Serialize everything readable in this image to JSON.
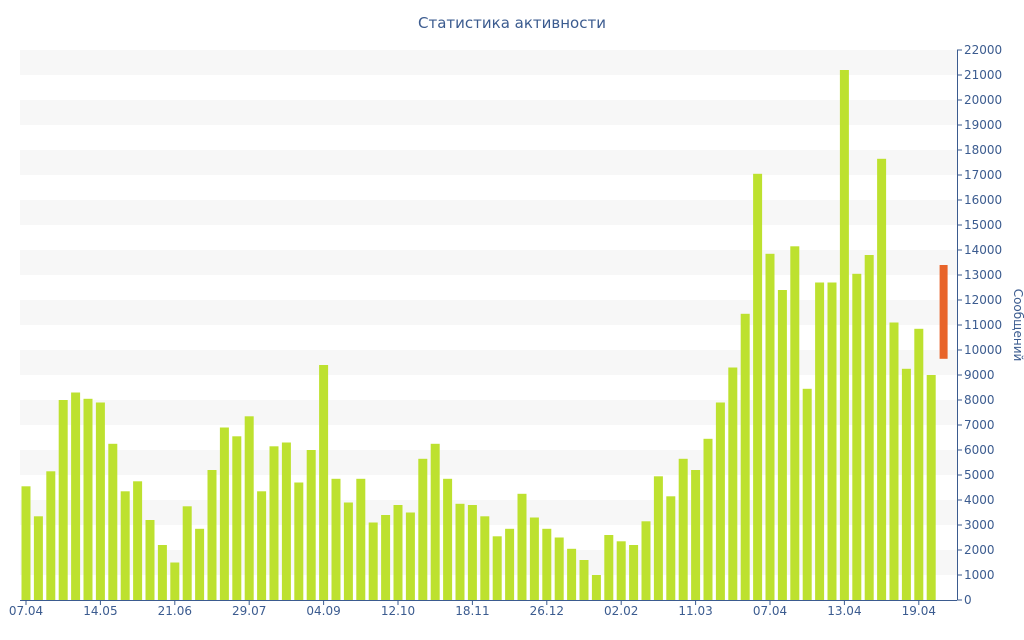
{
  "chart_data": {
    "type": "bar",
    "title": "Статистика активности",
    "xlabel": "",
    "ylabel": "Сообщений",
    "ylim": [
      0,
      22000
    ],
    "yticks": [
      0,
      1000,
      2000,
      3000,
      4000,
      5000,
      6000,
      7000,
      8000,
      9000,
      10000,
      11000,
      12000,
      13000,
      14000,
      15000,
      16000,
      17000,
      18000,
      19000,
      20000,
      21000,
      22000
    ],
    "xtick_labels": [
      {
        "index": 0,
        "label": "07.04"
      },
      {
        "index": 6,
        "label": "14.05"
      },
      {
        "index": 12,
        "label": "21.06"
      },
      {
        "index": 18,
        "label": "29.07"
      },
      {
        "index": 24,
        "label": "04.09"
      },
      {
        "index": 30,
        "label": "12.10"
      },
      {
        "index": 36,
        "label": "18.11"
      },
      {
        "index": 42,
        "label": "26.12"
      },
      {
        "index": 48,
        "label": "02.02"
      },
      {
        "index": 54,
        "label": "11.03"
      },
      {
        "index": 60,
        "label": "07.04"
      },
      {
        "index": 66,
        "label": "13.04"
      },
      {
        "index": 72,
        "label": "19.04"
      }
    ],
    "values": [
      4550,
      3350,
      5150,
      8000,
      8300,
      8050,
      7900,
      6250,
      4350,
      4750,
      3200,
      2200,
      1500,
      3750,
      2850,
      5200,
      6900,
      6550,
      7350,
      4350,
      6150,
      6300,
      4700,
      6000,
      9400,
      4850,
      3900,
      4850,
      3100,
      3400,
      3800,
      3500,
      5650,
      6250,
      4850,
      3850,
      3800,
      3350,
      2550,
      2850,
      4250,
      3300,
      2850,
      2500,
      2050,
      1600,
      1000,
      2600,
      2350,
      2200,
      3150,
      4950,
      4150,
      5650,
      5200,
      6450,
      7900,
      9300,
      11450,
      17050,
      13850,
      12400,
      14150,
      8450,
      12700,
      12700,
      21200,
      13050,
      13800,
      17650,
      11100,
      9250,
      10850,
      9000
    ],
    "current_period": {
      "bottom": 9650,
      "top": 13400
    },
    "colors": {
      "bar": "#bde12f",
      "current": "#e8642a",
      "band": "#f7f7f7",
      "axis": "#3b5b8f"
    },
    "grid": "alternating-bands",
    "legend": "none"
  }
}
